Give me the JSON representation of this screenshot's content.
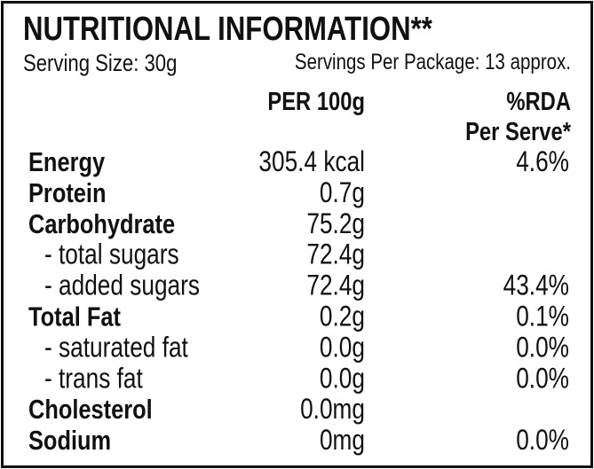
{
  "title": "NUTRITIONAL INFORMATION**",
  "serving_size": "Serving Size: 30g",
  "servings_per_package": "Servings Per Package: 13 approx.",
  "headers": {
    "per_100g": "PER 100g",
    "rda_line1": "%RDA",
    "rda_line2": "Per Serve*"
  },
  "rows": [
    {
      "label": "Energy",
      "bold": true,
      "per_100g": "305.4 kcal",
      "rda": "4.6%"
    },
    {
      "label": "Protein",
      "bold": true,
      "per_100g": "0.7g"
    },
    {
      "label": "Carbohydrate",
      "bold": true,
      "per_100g": "75.2g"
    },
    {
      "label": "- total sugars",
      "bold": false,
      "per_100g": "72.4g"
    },
    {
      "label": "- added sugars",
      "bold": false,
      "per_100g": "72.4g",
      "rda": "43.4%"
    },
    {
      "label": "Total Fat",
      "bold": true,
      "per_100g": "0.2g",
      "rda": "0.1%"
    },
    {
      "label": "- saturated fat",
      "bold": false,
      "per_100g": "0.0g",
      "rda": "0.0%"
    },
    {
      "label": "- trans fat",
      "bold": false,
      "per_100g": "0.0g",
      "rda": "0.0%"
    },
    {
      "label": "Cholesterol",
      "bold": true,
      "per_100g": "0.0mg"
    },
    {
      "label": "Sodium",
      "bold": true,
      "per_100g": "0mg",
      "rda": "0.0%"
    }
  ]
}
